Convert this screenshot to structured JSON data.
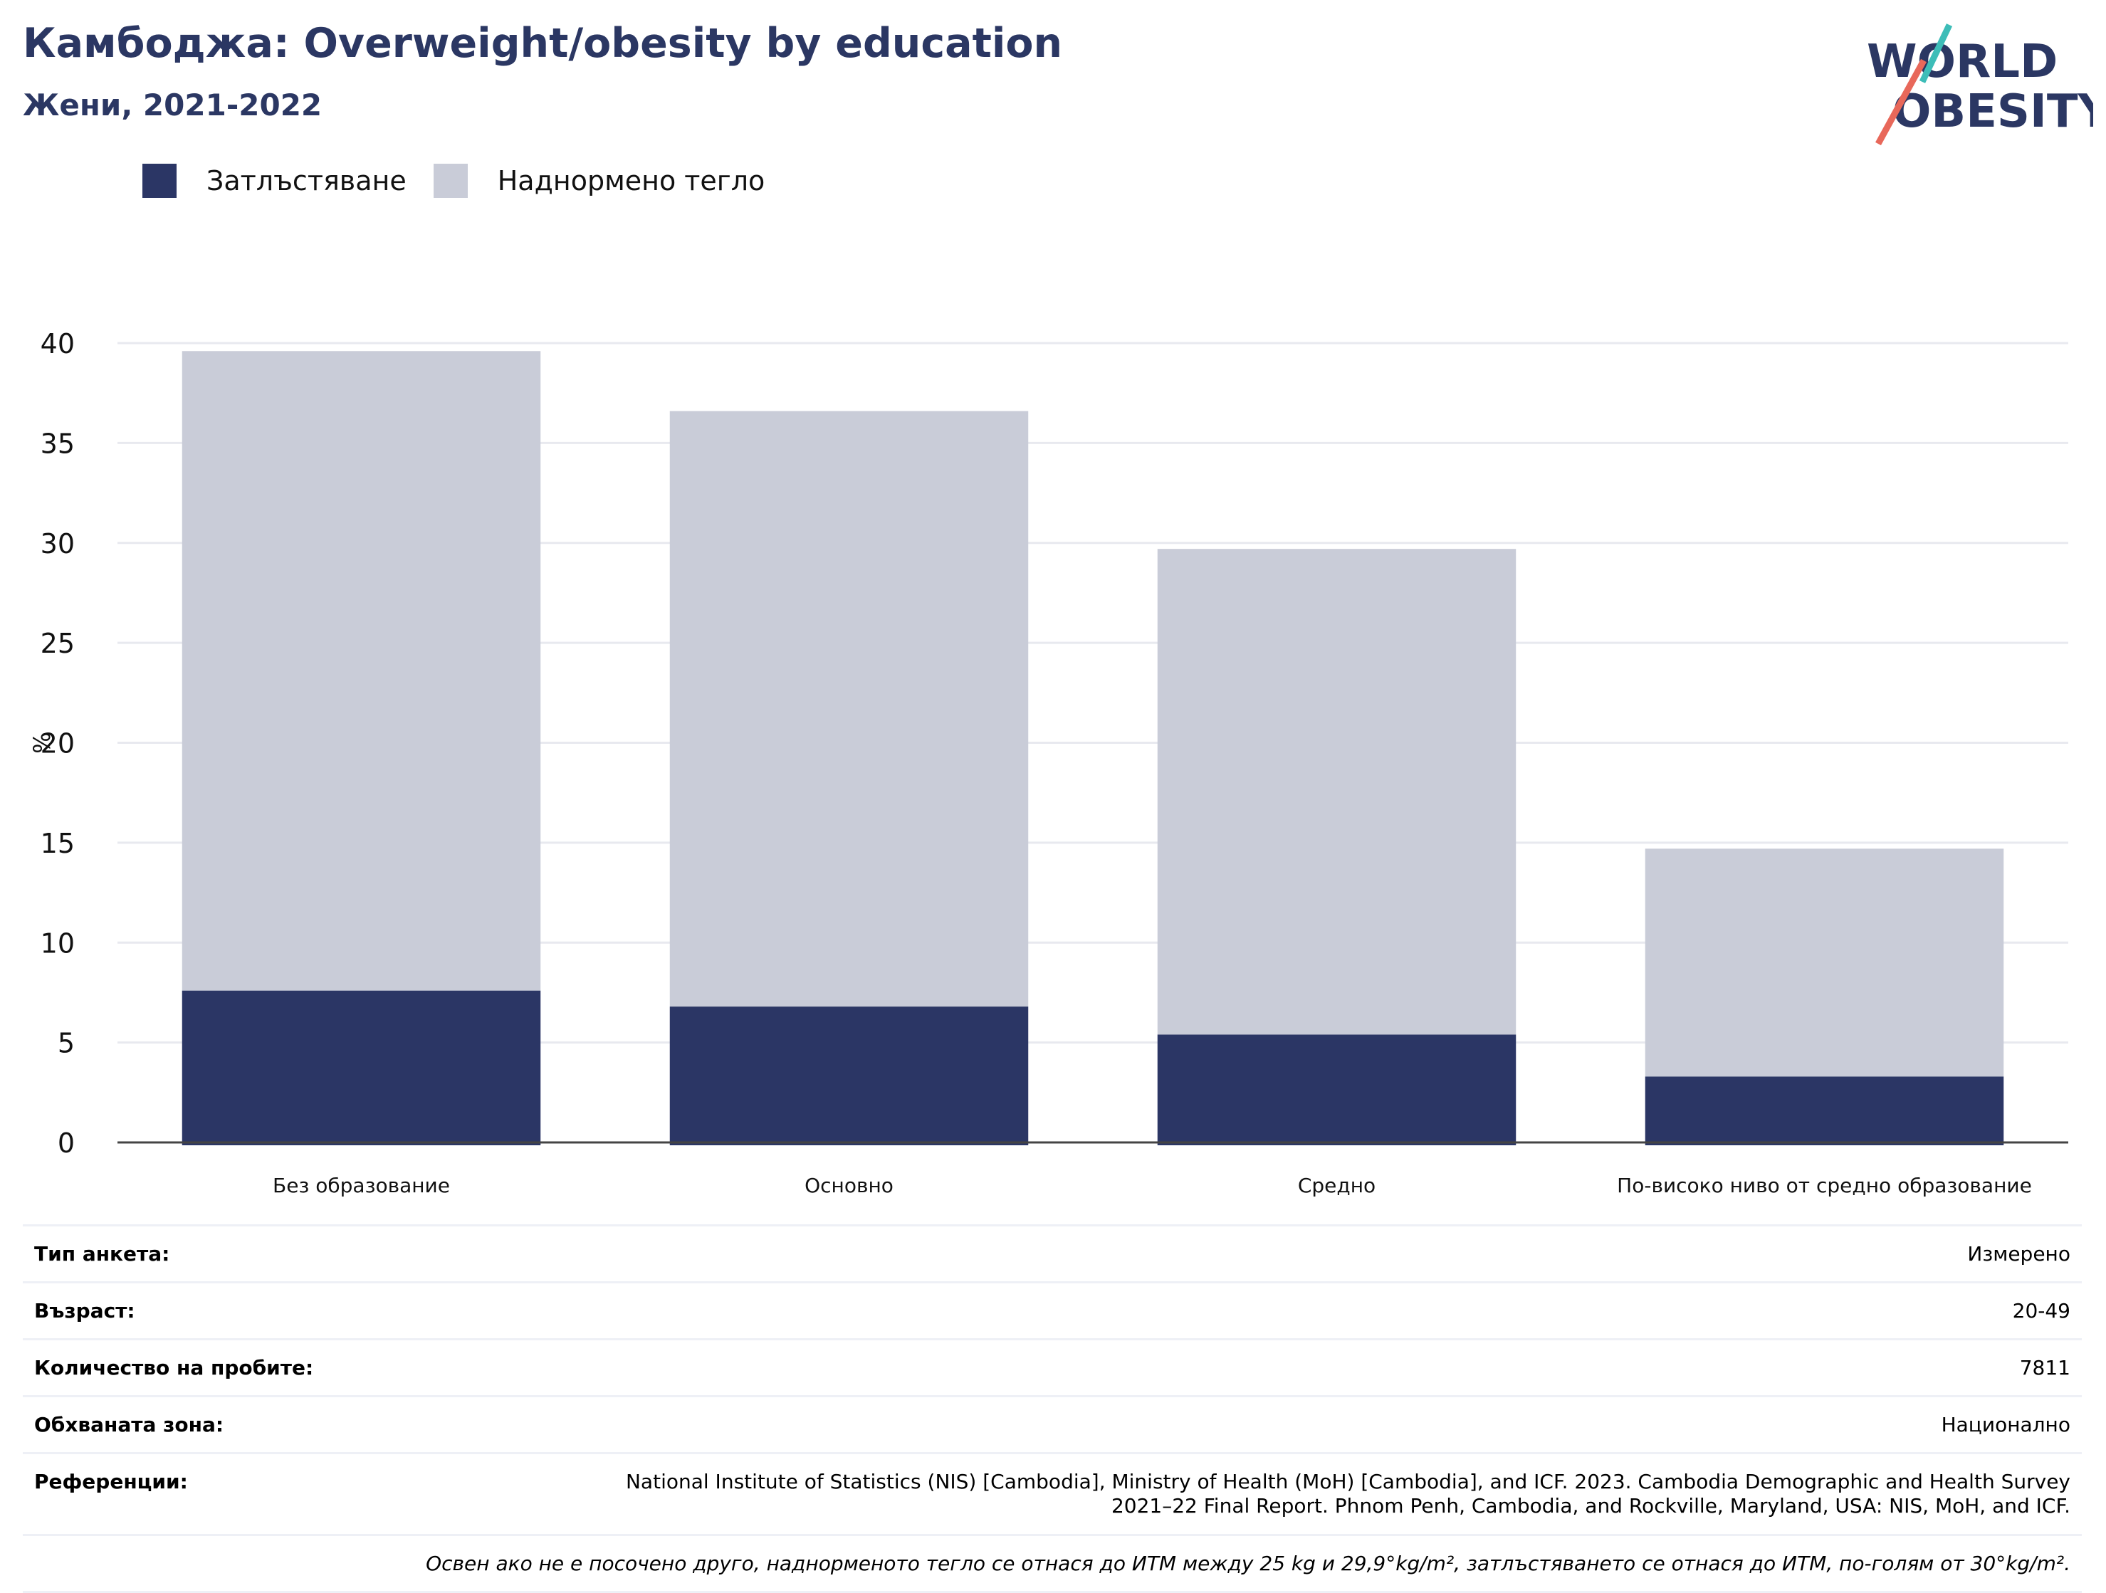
{
  "header": {
    "title": "Камбоджа: Overweight/obesity by education",
    "subtitle": "Жени, 2021-2022",
    "logo_line1": "WORLD",
    "logo_line2": "OBESITY"
  },
  "colors": {
    "title": "#2b3763",
    "obesity": "#2b3665",
    "overweight": "#c9ccd8",
    "logo_navy": "#2b3763",
    "logo_teal": "#3dbdb8",
    "logo_coral": "#e8685a"
  },
  "legend": {
    "obesity_label": "Затлъстяване",
    "overweight_label": "Наднормено тегло"
  },
  "chart_data": {
    "type": "bar",
    "stacked": true,
    "categories": [
      "Без образование",
      "Основно",
      "Средно",
      "По-високо ниво от средно образование"
    ],
    "series": [
      {
        "name": "Затлъстяване",
        "values": [
          7.6,
          6.8,
          5.4,
          3.3
        ]
      },
      {
        "name": "Наднормено тегло",
        "values": [
          32.0,
          29.8,
          24.3,
          11.4
        ]
      }
    ],
    "ylabel": "%",
    "ylim": [
      0,
      40
    ],
    "yticks": [
      0,
      5,
      10,
      15,
      20,
      25,
      30,
      35,
      40
    ],
    "grid": true,
    "legend_position": "top-left"
  },
  "info": [
    {
      "label": "Тип анкета:",
      "value": "Измерено"
    },
    {
      "label": "Възраст:",
      "value": "20-49"
    },
    {
      "label": "Количество на пробите:",
      "value": "7811"
    },
    {
      "label": "Обхваната зона:",
      "value": "Национално"
    },
    {
      "label": "Референции:",
      "value": "National Institute of Statistics (NIS) [Cambodia], Ministry of Health (MoH) [Cambodia], and ICF. 2023. Cambodia Demographic and Health Survey 2021–22 Final Report. Phnom Penh, Cambodia, and Rockville, Maryland, USA: NIS, MoH, and ICF."
    }
  ],
  "note": "Освен ако не е посочено друго, наднорменото тегло се отнася до ИТМ между 25 kg и 29,9°kg/m², затлъстяването се отнася до ИТМ, по-голям от 30°kg/m²."
}
